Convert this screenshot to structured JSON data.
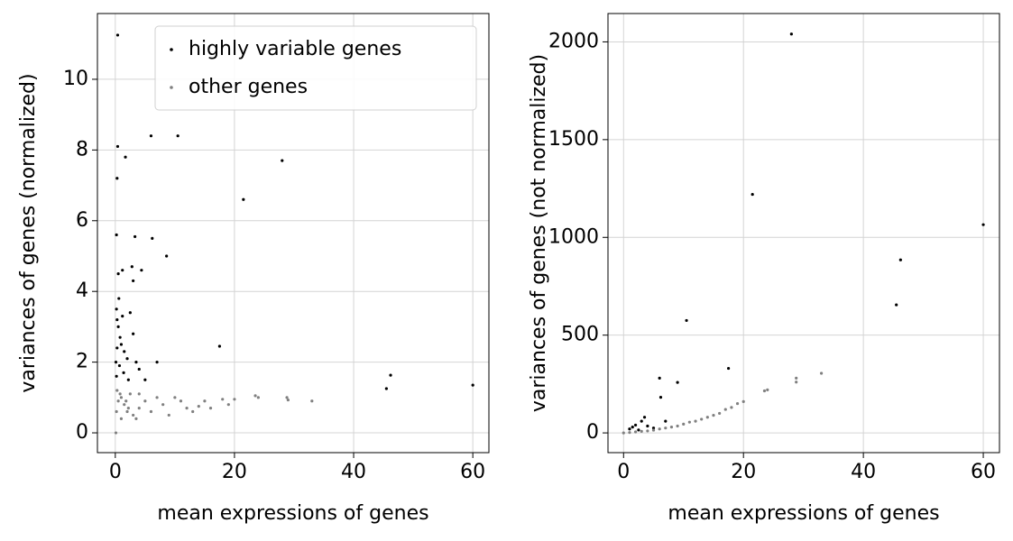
{
  "chart_data": [
    {
      "type": "scatter",
      "xlabel": "mean expressions of genes",
      "ylabel": "variances of genes (normalized)",
      "xlim": [
        -3.0,
        62.7
      ],
      "ylim": [
        -0.56,
        11.86
      ],
      "xticks": [
        0,
        20,
        40,
        60
      ],
      "yticks": [
        0,
        2,
        4,
        6,
        8,
        10
      ],
      "grid": true,
      "legend": "upper right",
      "series": [
        {
          "name": "highly variable genes",
          "color": "#000000",
          "x": [
            0.4,
            0.4,
            1.7,
            0.3,
            6,
            10.5,
            28,
            21.5,
            0.2,
            3.3,
            6.2,
            8.6,
            2.8,
            4.4,
            1.2,
            0.5,
            3,
            17.5,
            45.5,
            46.2,
            60,
            0.2,
            0.3,
            0.5,
            0.8,
            1,
            1.5,
            2,
            2.5,
            3,
            3.5,
            4,
            5,
            0.1,
            0.2,
            7,
            0.6,
            1.2,
            0.3,
            0.7,
            1.4,
            2.2
          ],
          "values": [
            11.25,
            8.1,
            7.8,
            7.2,
            8.4,
            8.4,
            7.7,
            6.6,
            5.6,
            5.55,
            5.5,
            5.0,
            4.7,
            4.6,
            4.6,
            4.5,
            4.3,
            2.45,
            1.25,
            1.63,
            1.35,
            3.5,
            3.2,
            3.0,
            2.7,
            2.5,
            2.3,
            2.1,
            3.4,
            2.8,
            2.0,
            1.8,
            1.5,
            2.0,
            1.6,
            2.0,
            3.8,
            3.3,
            2.4,
            1.9,
            1.7,
            1.5
          ]
        },
        {
          "name": "other genes",
          "color": "#808080",
          "x": [
            0.2,
            0.5,
            1,
            1.5,
            2,
            3,
            4,
            5,
            6,
            7,
            8,
            9,
            10,
            11,
            12,
            14,
            15,
            16,
            18,
            19,
            20,
            23.5,
            24,
            28.8,
            29,
            33,
            2.5,
            3.5,
            0.1,
            1,
            4,
            13,
            0.3,
            0.8,
            1.8,
            2.2
          ],
          "values": [
            0.6,
            0.9,
            1.0,
            0.8,
            0.6,
            0.5,
            0.7,
            0.9,
            0.6,
            1.0,
            0.8,
            0.5,
            1.0,
            0.9,
            0.7,
            0.75,
            0.9,
            0.7,
            0.95,
            0.8,
            0.95,
            1.05,
            1.0,
            1.0,
            0.93,
            0.9,
            1.1,
            0.4,
            0.0,
            0.4,
            1.1,
            0.6,
            1.2,
            1.1,
            0.9,
            0.7
          ]
        }
      ]
    },
    {
      "type": "scatter",
      "xlabel": "mean expressions of genes",
      "ylabel": "variances of genes (not normalized)",
      "xlim": [
        -2.6,
        62.7
      ],
      "ylim": [
        -101,
        2145
      ],
      "xticks": [
        0,
        20,
        40,
        60
      ],
      "yticks": [
        0,
        500,
        1000,
        1500,
        2000
      ],
      "grid": true,
      "series": [
        {
          "color": "#000000",
          "x": [
            28,
            21.5,
            60,
            46.2,
            45.5,
            10.5,
            17.5,
            6,
            9,
            6.2,
            2,
            3,
            1,
            4,
            5,
            7,
            3.5,
            1.5,
            2.5
          ],
          "values": [
            2040,
            1220,
            1065,
            885,
            655,
            575,
            330,
            280,
            258,
            182,
            40,
            60,
            20,
            35,
            25,
            60,
            80,
            30,
            15
          ]
        },
        {
          "color": "#808080",
          "x": [
            0,
            1,
            2,
            3,
            5,
            7,
            9,
            10,
            12,
            14,
            16,
            18,
            19,
            20,
            23.5,
            24,
            28.8,
            28.8,
            33,
            13,
            15,
            17,
            11,
            8,
            6,
            4
          ],
          "values": [
            0,
            2,
            5,
            8,
            14,
            25,
            35,
            45,
            60,
            80,
            100,
            130,
            150,
            160,
            215,
            220,
            280,
            260,
            305,
            70,
            90,
            120,
            55,
            30,
            20,
            10
          ]
        }
      ]
    }
  ]
}
